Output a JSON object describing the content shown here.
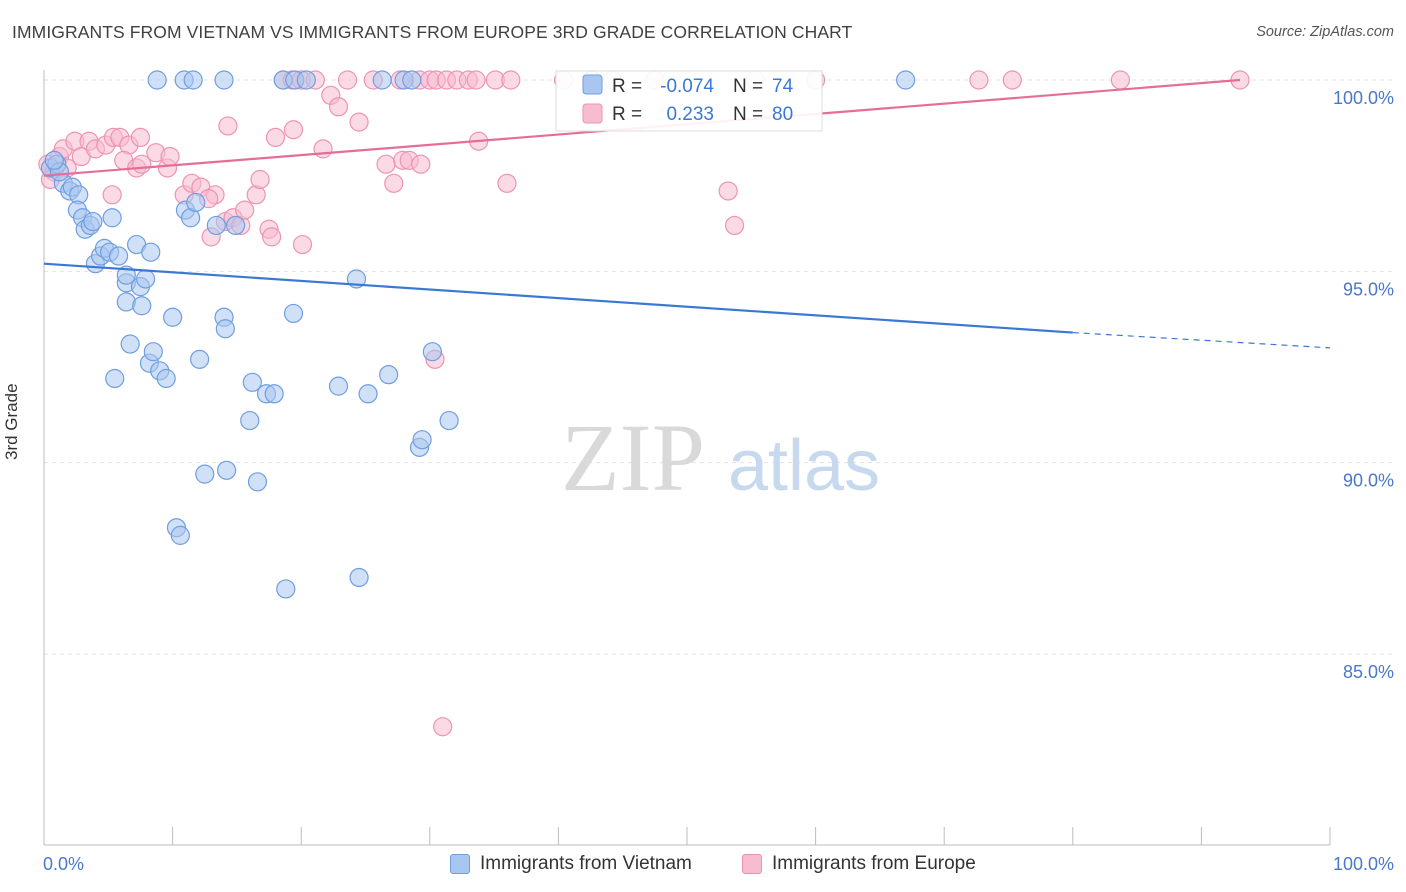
{
  "title": "IMMIGRANTS FROM VIETNAM VS IMMIGRANTS FROM EUROPE 3RD GRADE CORRELATION CHART",
  "source": "Source: ZipAtlas.com",
  "watermark": {
    "zip": "ZIP",
    "atlas": "atlas"
  },
  "colors": {
    "blue_fill": "#a9c6f0",
    "blue_stroke": "#6f9ee0",
    "blue_line": "#3a78d4",
    "pink_fill": "#f8bcd0",
    "pink_stroke": "#ee93b3",
    "pink_line": "#e46e98",
    "tick_label": "#4a78c8"
  },
  "legend_box": {
    "rows": [
      {
        "r_label": "R =",
        "r_value": "-0.074",
        "n_label": "N =",
        "n_value": "74"
      },
      {
        "r_label": "R =",
        "r_value": "0.233",
        "n_label": "N =",
        "n_value": "80"
      }
    ]
  },
  "legend": {
    "vietnam": "Immigrants from Vietnam",
    "europe": "Immigrants from Europe"
  },
  "chart_data": {
    "type": "scatter",
    "title": "IMMIGRANTS FROM VIETNAM VS IMMIGRANTS FROM EUROPE 3RD GRADE CORRELATION CHART",
    "xlabel": "",
    "ylabel": "3rd Grade",
    "xlim": [
      0,
      100
    ],
    "ylim": [
      80.5,
      100.5
    ],
    "x_tick_labels": [
      "0.0%",
      "100.0%"
    ],
    "y_ticks": [
      {
        "value": 85,
        "label": "85.0%"
      },
      {
        "value": 90,
        "label": "90.0%"
      },
      {
        "value": 95,
        "label": "95.0%"
      },
      {
        "value": 100,
        "label": "100.0%"
      }
    ],
    "series": [
      {
        "name": "Immigrants from Vietnam",
        "color": "blue",
        "R": -0.074,
        "N": 74,
        "trend": {
          "x0": 0,
          "y0": 95.2,
          "x1": 80,
          "y1": 93.4,
          "dash_to_x": 100,
          "dash_to_y": 93.0
        },
        "points": [
          [
            0.5,
            97.7
          ],
          [
            1.5,
            97.3
          ],
          [
            2,
            97.1
          ],
          [
            2.2,
            97.2
          ],
          [
            2.7,
            97.0
          ],
          [
            2.6,
            96.6
          ],
          [
            3,
            96.4
          ],
          [
            3.2,
            96.1
          ],
          [
            3.6,
            96.2
          ],
          [
            3.8,
            96.3
          ],
          [
            5.3,
            96.4
          ],
          [
            4,
            95.2
          ],
          [
            4.4,
            95.4
          ],
          [
            4.7,
            95.6
          ],
          [
            5.1,
            95.5
          ],
          [
            5.8,
            95.4
          ],
          [
            6.4,
            94.7
          ],
          [
            6.4,
            94.9
          ],
          [
            6.4,
            94.2
          ],
          [
            7.2,
            95.7
          ],
          [
            7.5,
            94.6
          ],
          [
            7.6,
            94.1
          ],
          [
            7.9,
            94.8
          ],
          [
            8.3,
            95.5
          ],
          [
            6.7,
            93.1
          ],
          [
            5.5,
            92.2
          ],
          [
            8.2,
            92.6
          ],
          [
            8.5,
            92.9
          ],
          [
            9,
            92.4
          ],
          [
            9.5,
            92.2
          ],
          [
            10,
            93.8
          ],
          [
            11,
            96.6
          ],
          [
            11.4,
            96.4
          ],
          [
            11.8,
            96.8
          ],
          [
            12.1,
            92.7
          ],
          [
            13.4,
            96.2
          ],
          [
            14,
            93.8
          ],
          [
            14.1,
            93.5
          ],
          [
            14.9,
            96.2
          ],
          [
            8.8,
            100
          ],
          [
            10.9,
            100
          ],
          [
            11.6,
            100
          ],
          [
            14,
            100
          ],
          [
            18.6,
            100
          ],
          [
            19.5,
            100
          ],
          [
            20.4,
            100
          ],
          [
            26.3,
            100
          ],
          [
            28,
            100
          ],
          [
            28.6,
            100
          ],
          [
            42.6,
            100
          ],
          [
            67,
            100
          ],
          [
            16.2,
            92.1
          ],
          [
            17.3,
            91.8
          ],
          [
            17.9,
            91.8
          ],
          [
            19.4,
            93.9
          ],
          [
            22.9,
            92.0
          ],
          [
            24.3,
            94.8
          ],
          [
            25.2,
            91.8
          ],
          [
            26.8,
            92.3
          ],
          [
            29.2,
            90.4
          ],
          [
            29.4,
            90.6
          ],
          [
            30.2,
            92.9
          ],
          [
            31.5,
            91.1
          ],
          [
            12.5,
            89.7
          ],
          [
            14.2,
            89.8
          ],
          [
            16.6,
            89.5
          ],
          [
            16,
            91.1
          ],
          [
            10.3,
            88.3
          ],
          [
            10.6,
            88.1
          ],
          [
            18.8,
            86.7
          ],
          [
            24.5,
            87.0
          ],
          [
            1,
            97.8
          ],
          [
            1.2,
            97.6
          ],
          [
            0.8,
            97.9
          ]
        ]
      },
      {
        "name": "Immigrants from Europe",
        "color": "pink",
        "R": 0.233,
        "N": 80,
        "trend": {
          "x0": 0,
          "y0": 97.5,
          "x1": 93,
          "y1": 100.0
        },
        "points": [
          [
            0.3,
            97.8
          ],
          [
            0.8,
            97.6
          ],
          [
            1.2,
            98.0
          ],
          [
            1.5,
            98.2
          ],
          [
            1.8,
            97.7
          ],
          [
            2.4,
            98.4
          ],
          [
            2.9,
            98.0
          ],
          [
            3.5,
            98.4
          ],
          [
            4,
            98.2
          ],
          [
            4.8,
            98.3
          ],
          [
            5.4,
            98.5
          ],
          [
            5.9,
            98.5
          ],
          [
            6.6,
            98.3
          ],
          [
            7.5,
            98.5
          ],
          [
            6.2,
            97.9
          ],
          [
            7.2,
            97.7
          ],
          [
            7.6,
            97.8
          ],
          [
            8.7,
            98.1
          ],
          [
            9.6,
            97.7
          ],
          [
            9.8,
            98.0
          ],
          [
            10.9,
            97.0
          ],
          [
            11.5,
            97.3
          ],
          [
            12.2,
            97.2
          ],
          [
            13.3,
            97.0
          ],
          [
            12.8,
            96.9
          ],
          [
            13,
            95.9
          ],
          [
            14.1,
            96.3
          ],
          [
            14.7,
            96.4
          ],
          [
            15.3,
            96.2
          ],
          [
            15.6,
            96.6
          ],
          [
            16.5,
            97.0
          ],
          [
            16.8,
            97.4
          ],
          [
            17.5,
            96.1
          ],
          [
            17.7,
            95.9
          ],
          [
            18,
            98.5
          ],
          [
            19.4,
            98.7
          ],
          [
            20.1,
            95.7
          ],
          [
            21.7,
            98.2
          ],
          [
            22.3,
            99.6
          ],
          [
            22.9,
            99.3
          ],
          [
            24.5,
            98.9
          ],
          [
            26.6,
            97.8
          ],
          [
            27.2,
            97.3
          ],
          [
            27.9,
            97.9
          ],
          [
            28.4,
            97.9
          ],
          [
            29.3,
            97.8
          ],
          [
            30.4,
            92.7
          ],
          [
            31,
            83.1
          ],
          [
            33.8,
            98.4
          ],
          [
            36,
            97.3
          ],
          [
            53.2,
            97.1
          ],
          [
            53.7,
            96.2
          ],
          [
            14.3,
            98.8
          ],
          [
            5.3,
            97.0
          ],
          [
            18.6,
            100
          ],
          [
            19.3,
            100
          ],
          [
            20,
            100
          ],
          [
            21.1,
            100
          ],
          [
            23.6,
            100
          ],
          [
            25.6,
            100
          ],
          [
            27.7,
            100
          ],
          [
            29.2,
            100
          ],
          [
            30,
            100
          ],
          [
            30.5,
            100
          ],
          [
            31.3,
            100
          ],
          [
            32.1,
            100
          ],
          [
            33,
            100
          ],
          [
            33.6,
            100
          ],
          [
            35.1,
            100
          ],
          [
            36.3,
            100
          ],
          [
            40.4,
            100
          ],
          [
            44.2,
            100
          ],
          [
            47.5,
            100
          ],
          [
            55.3,
            100
          ],
          [
            60,
            100
          ],
          [
            72.7,
            100
          ],
          [
            75.3,
            100
          ],
          [
            83.7,
            100
          ],
          [
            93,
            100
          ],
          [
            0.5,
            97.4
          ]
        ]
      }
    ]
  }
}
